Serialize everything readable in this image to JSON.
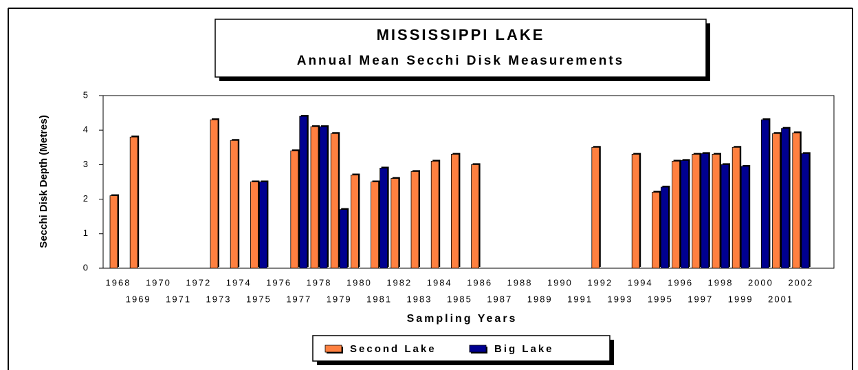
{
  "chart_data": {
    "type": "bar",
    "title": "MISSISSIPPI LAKE",
    "subtitle": "Annual Mean Secchi Disk Measurements",
    "x_label": "Sampling Years",
    "y_label": "Secchi Disk Depth (Metres)",
    "categories": [
      "1968",
      "1969",
      "1970",
      "1971",
      "1972",
      "1973",
      "1974",
      "1975",
      "1976",
      "1977",
      "1978",
      "1979",
      "1980",
      "1981",
      "1982",
      "1983",
      "1984",
      "1985",
      "1986",
      "1987",
      "1988",
      "1989",
      "1990",
      "1991",
      "1992",
      "1993",
      "1994",
      "1995",
      "1996",
      "1997",
      "1998",
      "1999",
      "2000",
      "2001",
      "2002"
    ],
    "series": [
      {
        "name": "Second Lake",
        "color": "#ff8040",
        "values": [
          2.1,
          3.8,
          null,
          null,
          null,
          4.3,
          3.7,
          2.5,
          null,
          3.4,
          4.1,
          3.9,
          2.7,
          2.5,
          2.6,
          2.8,
          3.1,
          3.3,
          3.0,
          null,
          null,
          null,
          null,
          null,
          3.5,
          null,
          3.3,
          2.2,
          3.1,
          3.3,
          3.3,
          3.5,
          null,
          3.9,
          3.92
        ]
      },
      {
        "name": "Big Lake",
        "color": "#000090",
        "values": [
          null,
          null,
          null,
          null,
          null,
          null,
          null,
          2.5,
          null,
          4.4,
          4.1,
          1.7,
          null,
          2.9,
          null,
          null,
          null,
          null,
          null,
          null,
          null,
          null,
          null,
          null,
          null,
          null,
          null,
          2.35,
          3.12,
          3.32,
          3.0,
          2.95,
          4.3,
          4.05,
          3.32
        ]
      }
    ],
    "ylim": [
      0,
      5
    ],
    "yticks": [
      0,
      1,
      2,
      3,
      4,
      5
    ],
    "legend": "bottom"
  }
}
